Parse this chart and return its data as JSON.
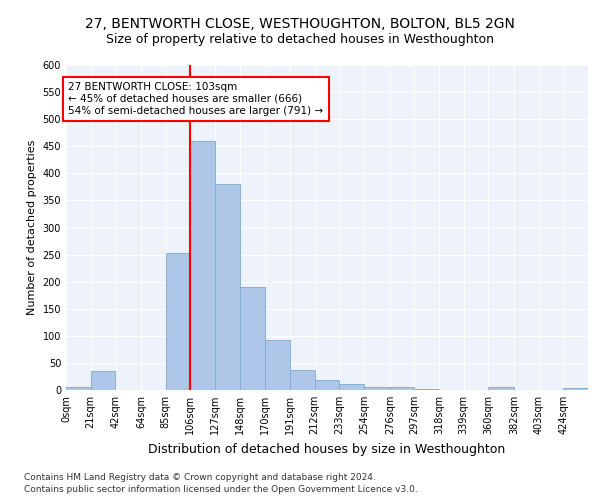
{
  "title": "27, BENTWORTH CLOSE, WESTHOUGHTON, BOLTON, BL5 2GN",
  "subtitle": "Size of property relative to detached houses in Westhoughton",
  "xlabel": "Distribution of detached houses by size in Westhoughton",
  "ylabel": "Number of detached properties",
  "bin_edges": [
    0,
    21,
    42,
    64,
    85,
    106,
    127,
    148,
    170,
    191,
    212,
    233,
    254,
    276,
    297,
    318,
    339,
    360,
    382,
    403,
    424,
    445
  ],
  "bar_heights": [
    5,
    35,
    0,
    0,
    252,
    460,
    380,
    190,
    93,
    37,
    18,
    11,
    5,
    5,
    2,
    0,
    0,
    5,
    0,
    0,
    3
  ],
  "bar_color": "#aec6e8",
  "bar_edgecolor": "#7aacce",
  "vline_x": 106,
  "vline_color": "red",
  "annotation_text": "27 BENTWORTH CLOSE: 103sqm\n← 45% of detached houses are smaller (666)\n54% of semi-detached houses are larger (791) →",
  "annotation_box_color": "white",
  "annotation_box_edgecolor": "red",
  "ylim": [
    0,
    600
  ],
  "yticks": [
    0,
    50,
    100,
    150,
    200,
    250,
    300,
    350,
    400,
    450,
    500,
    550,
    600
  ],
  "xtick_labels": [
    "0sqm",
    "21sqm",
    "42sqm",
    "64sqm",
    "85sqm",
    "106sqm",
    "127sqm",
    "148sqm",
    "170sqm",
    "191sqm",
    "212sqm",
    "233sqm",
    "254sqm",
    "276sqm",
    "297sqm",
    "318sqm",
    "339sqm",
    "360sqm",
    "382sqm",
    "403sqm",
    "424sqm"
  ],
  "footnote1": "Contains HM Land Registry data © Crown copyright and database right 2024.",
  "footnote2": "Contains public sector information licensed under the Open Government Licence v3.0.",
  "bg_color": "#eef2fa",
  "grid_color": "white",
  "title_fontsize": 10,
  "subtitle_fontsize": 9,
  "xlabel_fontsize": 9,
  "ylabel_fontsize": 8,
  "tick_fontsize": 7,
  "annot_fontsize": 7.5,
  "footnote_fontsize": 6.5
}
